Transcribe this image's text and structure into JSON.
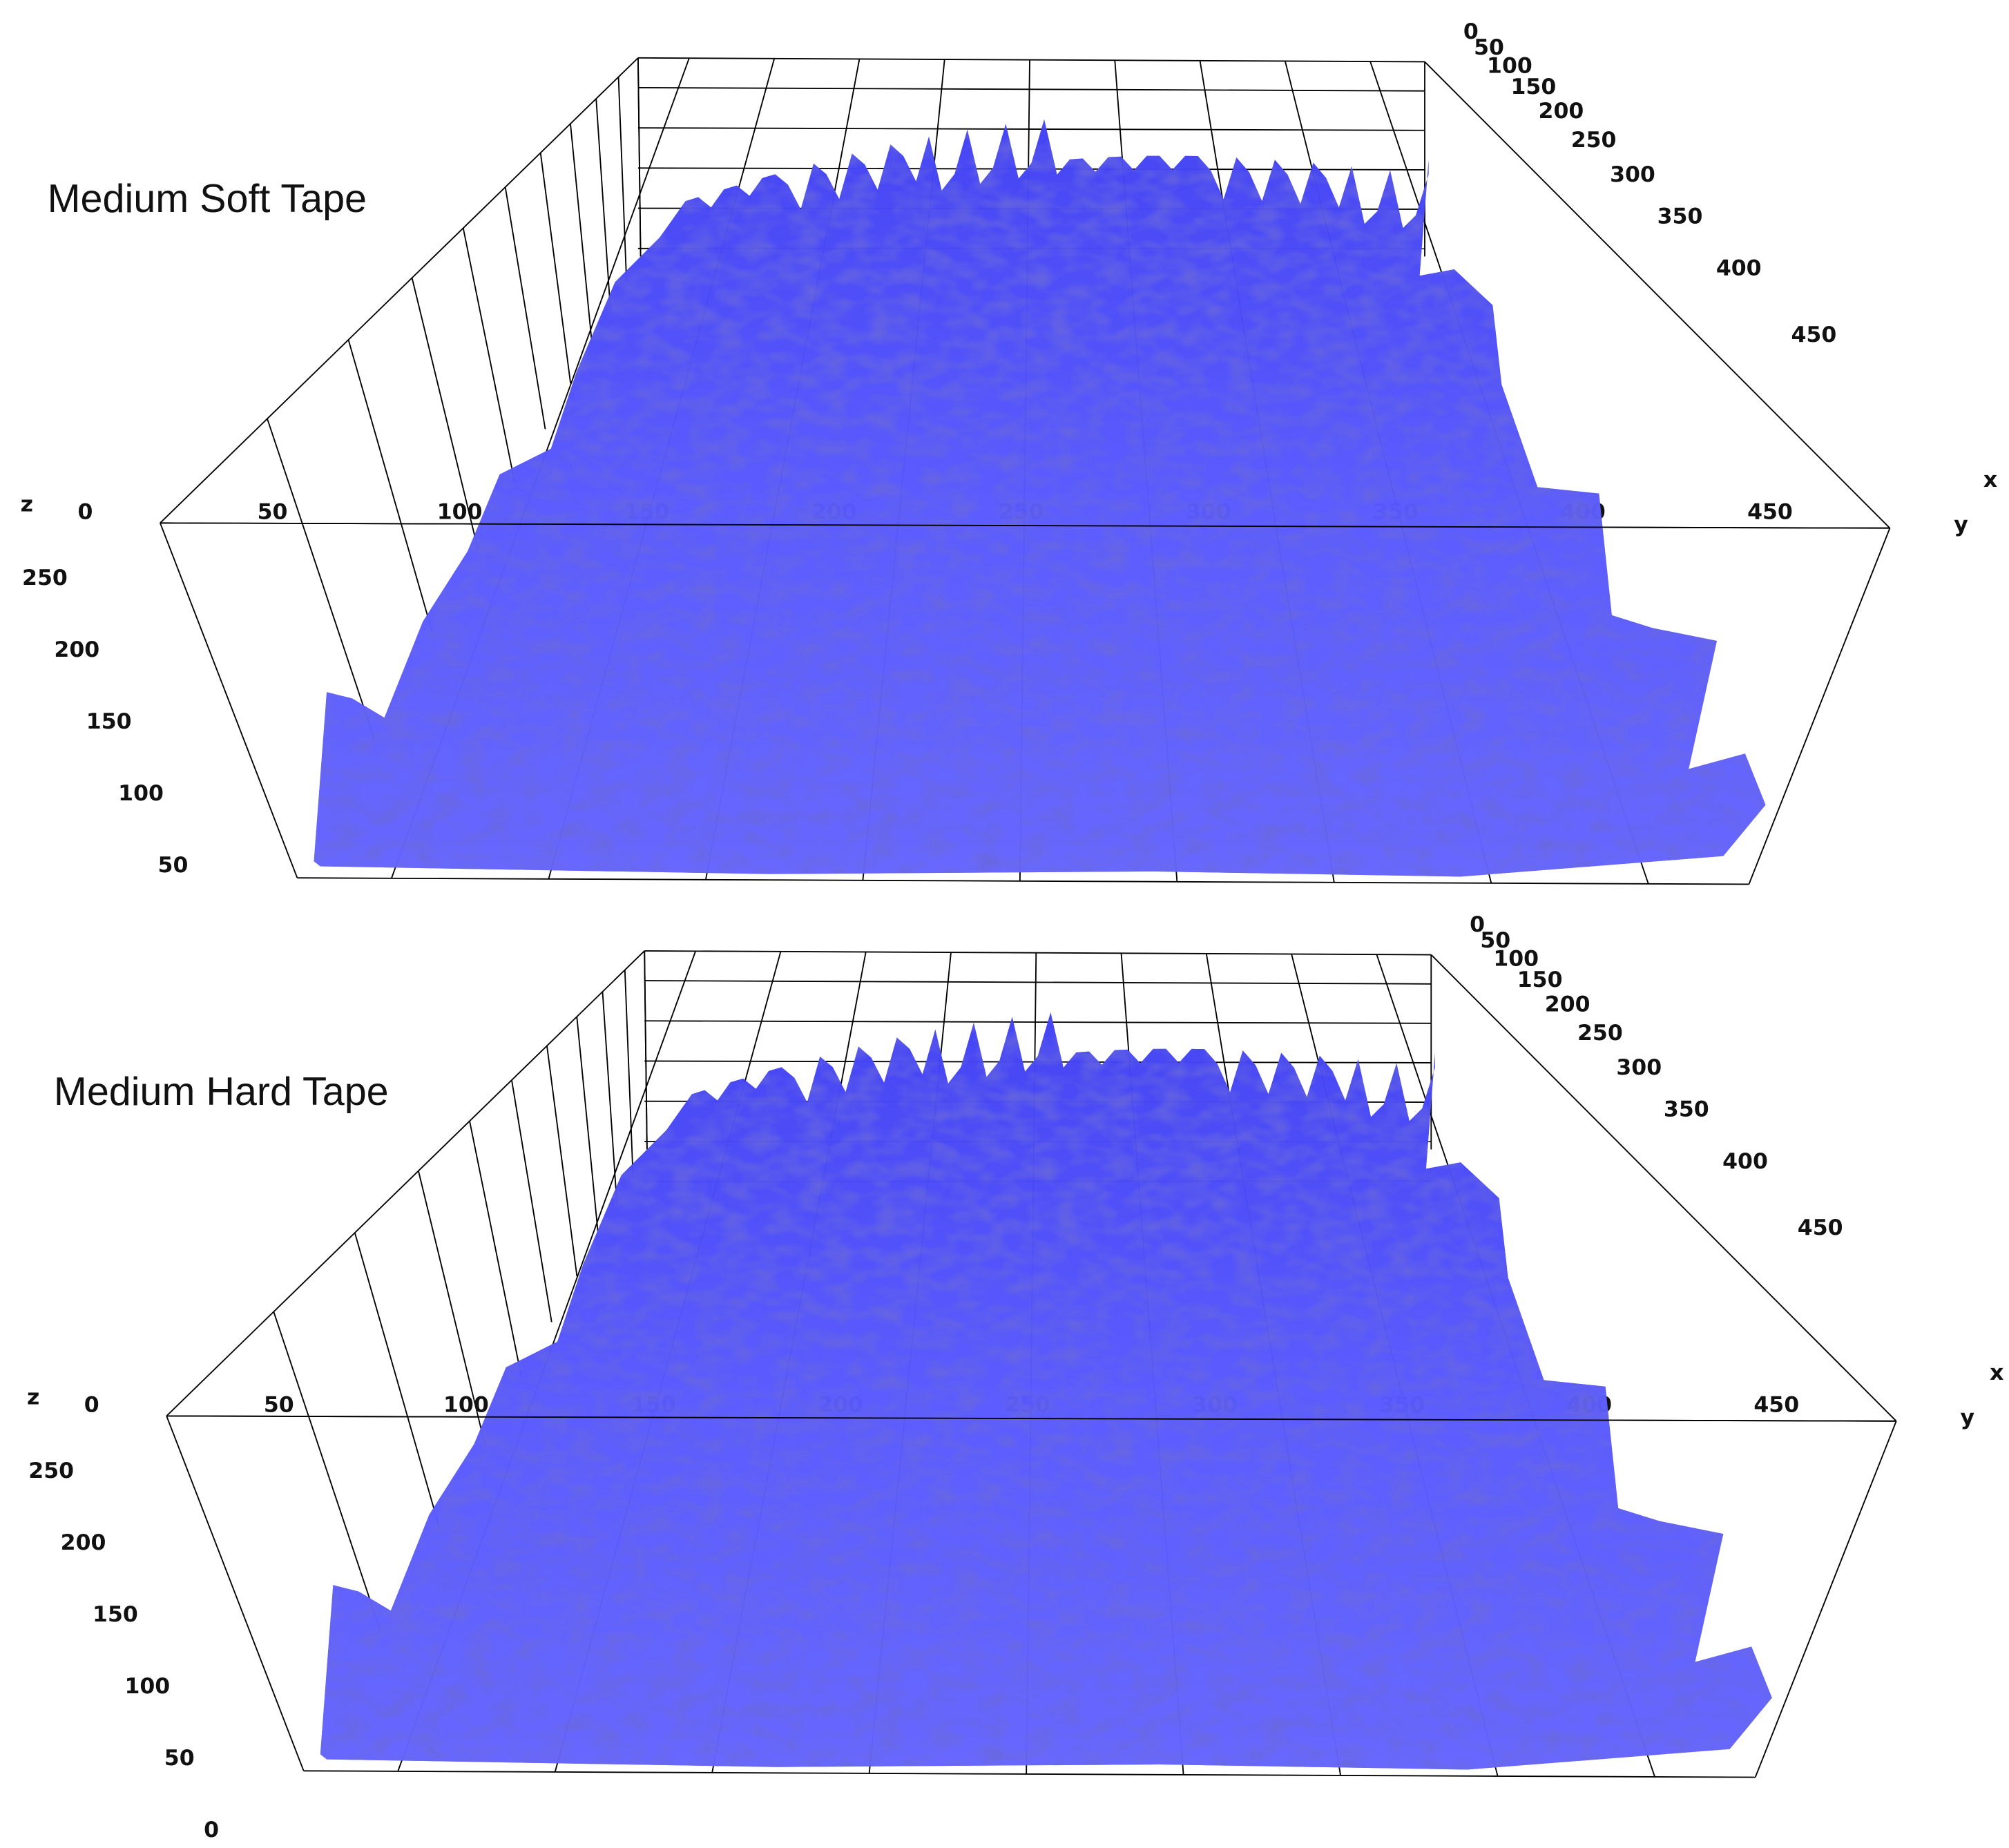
{
  "chart_data": [
    {
      "type": "surface3d",
      "title": "Medium Soft Tape",
      "xlabel": "x",
      "ylabel": "y",
      "zlabel": "z",
      "color": "#5555ff",
      "xlim": [
        0,
        500
      ],
      "xticks": [
        0,
        50,
        100,
        150,
        200,
        250,
        300,
        350,
        400,
        450
      ],
      "ylim": [
        20,
        482
      ],
      "yticks": [
        0,
        50,
        100,
        150,
        200,
        250,
        300,
        350,
        400,
        450
      ],
      "zlim": [
        40,
        287
      ],
      "zticks": [
        250,
        200,
        150,
        100,
        50
      ]
    },
    {
      "type": "surface3d",
      "title": "Medium Hard Tape",
      "xlabel": "x",
      "ylabel": "y",
      "zlabel": "z",
      "color": "#5555ff",
      "xlim": [
        0,
        500
      ],
      "xticks": [
        0,
        50,
        100,
        150,
        200,
        250,
        300,
        350,
        400,
        450
      ],
      "ylim": [
        20,
        482
      ],
      "yticks": [
        0,
        50,
        100,
        150,
        200,
        250,
        300,
        350,
        400,
        450
      ],
      "zlim": [
        40,
        287
      ],
      "zticks": [
        250,
        200,
        150,
        100,
        50,
        0
      ]
    }
  ]
}
